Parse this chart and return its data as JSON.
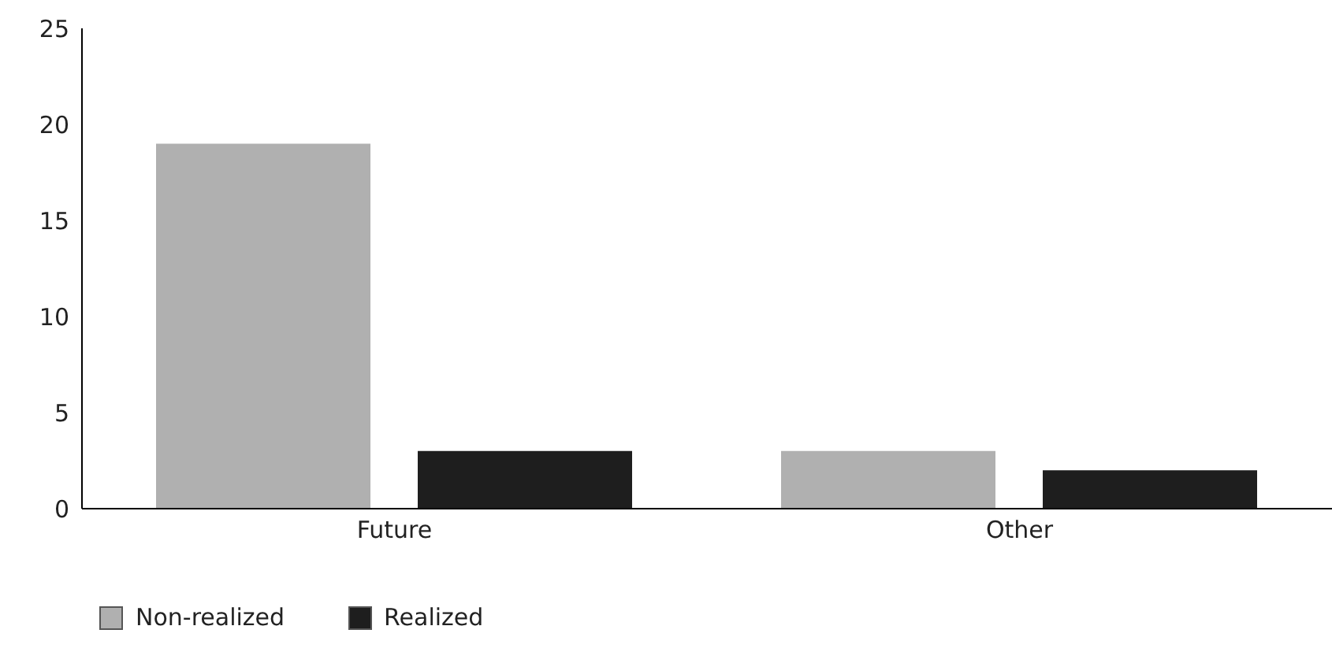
{
  "chart_data": {
    "type": "bar",
    "categories": [
      "Future",
      "Other"
    ],
    "series": [
      {
        "name": "Non-realized",
        "color": "#b0b0b0",
        "values": [
          19,
          3
        ]
      },
      {
        "name": "Realized",
        "color": "#1e1e1e",
        "values": [
          3,
          2
        ]
      }
    ],
    "ylim": [
      0,
      25
    ],
    "yticks": [
      0,
      5,
      10,
      15,
      20,
      25
    ],
    "grid": false,
    "legend": "bottom left"
  }
}
